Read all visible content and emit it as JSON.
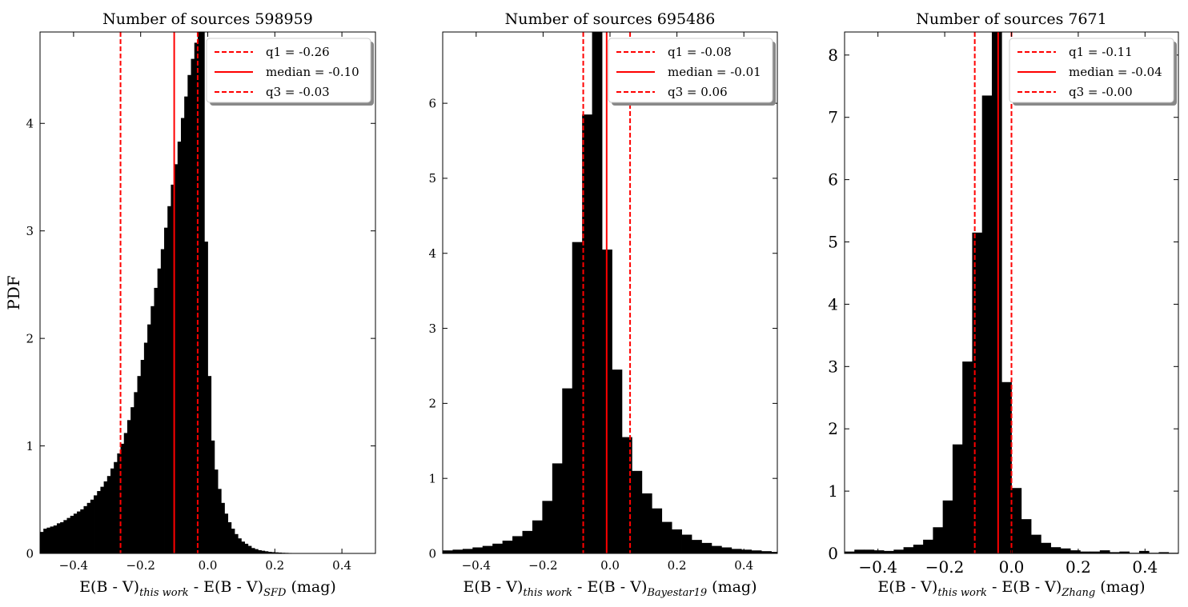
{
  "chart_data": [
    {
      "type": "bar",
      "title": "Number of sources 598959",
      "xlabel_main": "E(B - V)",
      "xlabel_sub1": "this work",
      "xlabel_mid": " - E(B - V)",
      "xlabel_sub2": "SFD",
      "xlabel_unit": " (mag)",
      "ylabel": "PDF",
      "xlim": [
        -0.5,
        0.5
      ],
      "ylim": [
        0,
        4.85
      ],
      "xticks": [
        -0.4,
        -0.2,
        0.0,
        0.2,
        0.4
      ],
      "xtick_labels": [
        "−0.4",
        "−0.2",
        "0.0",
        "0.2",
        "0.4"
      ],
      "yticks": [
        0,
        1,
        2,
        3,
        4
      ],
      "ytick_labels": [
        "0",
        "1",
        "2",
        "3",
        "4"
      ],
      "bin_start": -0.5,
      "bin_width": 0.01,
      "values": [
        0.2,
        0.23,
        0.24,
        0.25,
        0.26,
        0.28,
        0.29,
        0.31,
        0.33,
        0.35,
        0.37,
        0.39,
        0.41,
        0.44,
        0.47,
        0.5,
        0.54,
        0.58,
        0.62,
        0.67,
        0.72,
        0.79,
        0.85,
        0.93,
        1.02,
        1.12,
        1.24,
        1.36,
        1.5,
        1.65,
        1.8,
        1.96,
        2.13,
        2.3,
        2.47,
        2.65,
        2.83,
        3.03,
        3.23,
        3.43,
        3.62,
        3.83,
        4.05,
        4.25,
        4.45,
        4.6,
        4.75,
        4.85,
        4.85,
        2.9,
        1.65,
        1.05,
        0.78,
        0.6,
        0.47,
        0.37,
        0.29,
        0.23,
        0.18,
        0.14,
        0.11,
        0.09,
        0.07,
        0.05,
        0.04,
        0.03,
        0.025,
        0.02,
        0.015,
        0.012,
        0.01,
        0.008,
        0.006,
        0.005,
        0.004,
        0.003,
        0.003,
        0.002,
        0.002,
        0.002,
        0.001,
        0.001,
        0.001,
        0.001,
        0.001,
        0.001,
        0.001,
        0.001,
        0.001,
        0.001,
        0.001,
        0.001,
        0.001,
        0.001,
        0.001,
        0.001,
        0.001,
        0.001,
        0.001,
        0.001
      ],
      "lines": [
        {
          "value": -0.26,
          "style": "dashed",
          "color": "#ff0000",
          "label": "q1 = -0.26"
        },
        {
          "value": -0.1,
          "style": "solid",
          "color": "#ff0000",
          "label": "median = -0.10"
        },
        {
          "value": -0.03,
          "style": "dashed",
          "color": "#ff0000",
          "label": "q3 = -0.03"
        }
      ],
      "legend": "top-right",
      "grid": false
    },
    {
      "type": "bar",
      "title": "Number of sources 695486",
      "xlabel_main": "E(B - V)",
      "xlabel_sub1": "this work",
      "xlabel_mid": " - E(B - V)",
      "xlabel_sub2": "Bayestar19",
      "xlabel_unit": " (mag)",
      "ylabel": "",
      "xlim": [
        -0.5,
        0.5
      ],
      "ylim": [
        0,
        6.95
      ],
      "xticks": [
        -0.4,
        -0.2,
        0.0,
        0.2,
        0.4
      ],
      "xtick_labels": [
        "−0.4",
        "−0.2",
        "0.0",
        "0.2",
        "0.4"
      ],
      "yticks": [
        0,
        1,
        2,
        3,
        4,
        5,
        6
      ],
      "ytick_labels": [
        "0",
        "1",
        "2",
        "3",
        "4",
        "5",
        "6"
      ],
      "bin_start": -0.5,
      "bin_width": 0.02976,
      "values": [
        0.04,
        0.05,
        0.06,
        0.08,
        0.1,
        0.13,
        0.17,
        0.23,
        0.3,
        0.44,
        0.7,
        1.2,
        2.2,
        4.15,
        5.85,
        6.95,
        4.05,
        2.45,
        1.55,
        1.1,
        0.8,
        0.6,
        0.42,
        0.32,
        0.25,
        0.18,
        0.14,
        0.1,
        0.08,
        0.06,
        0.05,
        0.04,
        0.03,
        0.02
      ],
      "lines": [
        {
          "value": -0.08,
          "style": "dashed",
          "color": "#ff0000",
          "label": "q1 = -0.08"
        },
        {
          "value": -0.01,
          "style": "solid",
          "color": "#ff0000",
          "label": "median = -0.01"
        },
        {
          "value": 0.06,
          "style": "dashed",
          "color": "#ff0000",
          "label": "q3 = 0.06"
        }
      ],
      "legend": "top-right",
      "grid": false
    },
    {
      "type": "bar",
      "title": "Number of sources 7671",
      "xlabel_main": "E(B - V)",
      "xlabel_sub1": "this work",
      "xlabel_mid": " - E(B - V)",
      "xlabel_sub2": "Zhang",
      "xlabel_unit": " (mag)",
      "ylabel": "",
      "xlim": [
        -0.5,
        0.5
      ],
      "ylim": [
        0,
        8.37
      ],
      "xticks": [
        -0.4,
        -0.2,
        0.0,
        0.2,
        0.4
      ],
      "xtick_labels": [
        "−0.4",
        "−0.2",
        "0.0",
        "0.2",
        "0.4"
      ],
      "yticks": [
        0,
        1,
        2,
        3,
        4,
        5,
        6,
        7,
        8
      ],
      "ytick_labels": [
        "0",
        "1",
        "2",
        "3",
        "4",
        "5",
        "6",
        "7",
        "8"
      ],
      "bin_start": -0.5,
      "bin_width": 0.02941,
      "values": [
        0.03,
        0.06,
        0.06,
        0.05,
        0.04,
        0.06,
        0.1,
        0.14,
        0.22,
        0.42,
        0.85,
        1.75,
        3.08,
        5.15,
        7.35,
        8.37,
        2.75,
        1.05,
        0.55,
        0.3,
        0.17,
        0.1,
        0.08,
        0.05,
        0.03,
        0.03,
        0.05,
        0.02,
        0.03,
        0.01,
        0.04,
        0.01,
        0.02,
        0.01
      ],
      "lines": [
        {
          "value": -0.11,
          "style": "dashed",
          "color": "#ff0000",
          "label": "q1 = -0.11"
        },
        {
          "value": -0.04,
          "style": "solid",
          "color": "#ff0000",
          "label": "median = -0.04"
        },
        {
          "value": 0.0,
          "style": "dashed",
          "color": "#ff0000",
          "label": "q3 = -0.00"
        }
      ],
      "legend": "top-right",
      "grid": false
    }
  ]
}
